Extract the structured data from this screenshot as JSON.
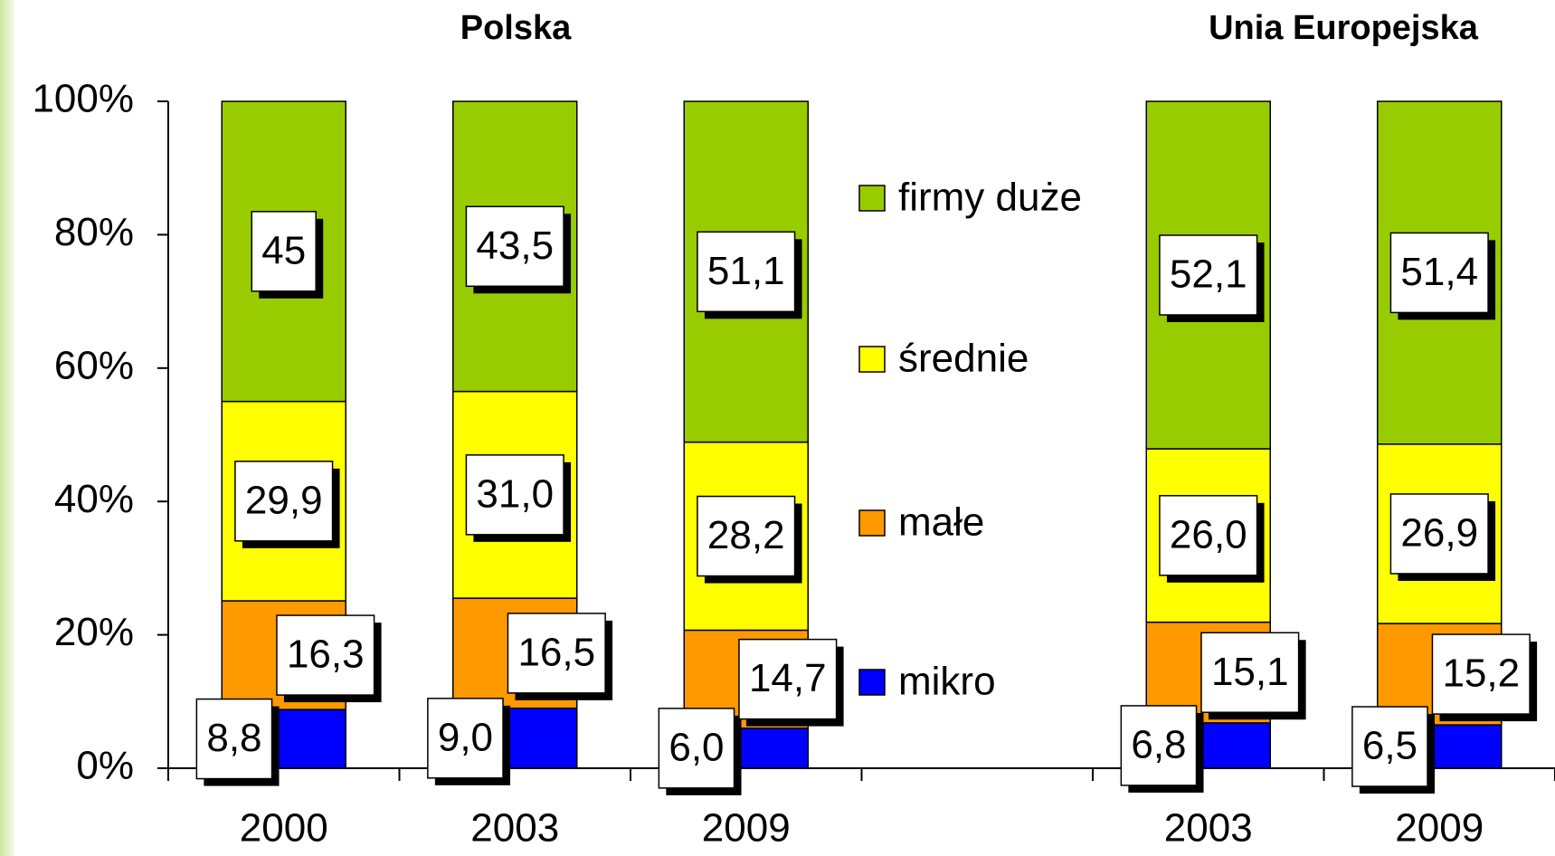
{
  "chart_data": {
    "type": "stacked-bar",
    "group_labels": [
      "Polska",
      "Unia Europejska"
    ],
    "categories": [
      "2000",
      "2003",
      "2009",
      null,
      "2003",
      "2009"
    ],
    "series": [
      {
        "name": "mikro",
        "color": "#0000ff",
        "values": [
          8.8,
          9.0,
          6.0,
          null,
          6.8,
          6.5
        ],
        "value_labels": [
          "8,8",
          "9,0",
          "6,0",
          null,
          "6,8",
          "6,5"
        ]
      },
      {
        "name": "małe",
        "color": "#ff9900",
        "values": [
          16.3,
          16.5,
          14.7,
          null,
          15.1,
          15.2
        ],
        "value_labels": [
          "16,3",
          "16,5",
          "14,7",
          null,
          "15,1",
          "15,2"
        ]
      },
      {
        "name": "średnie",
        "color": "#ffff00",
        "values": [
          29.9,
          31.0,
          28.2,
          null,
          26.0,
          26.9
        ],
        "value_labels": [
          "29,9",
          "31,0",
          "28,2",
          null,
          "26,0",
          "26,9"
        ]
      },
      {
        "name": "firmy duże",
        "color": "#99cc00",
        "values": [
          45,
          43.5,
          51.1,
          null,
          52.1,
          51.4
        ],
        "value_labels": [
          "45",
          "43,5",
          "51,1",
          null,
          "52,1",
          "51,4"
        ]
      }
    ],
    "ylim": [
      0,
      100
    ],
    "yticks": [
      {
        "value": 0,
        "label": "0%"
      },
      {
        "value": 20,
        "label": "20%"
      },
      {
        "value": 40,
        "label": "40%"
      },
      {
        "value": 60,
        "label": "60%"
      },
      {
        "value": 80,
        "label": "80%"
      },
      {
        "value": 100,
        "label": "100%"
      }
    ]
  }
}
